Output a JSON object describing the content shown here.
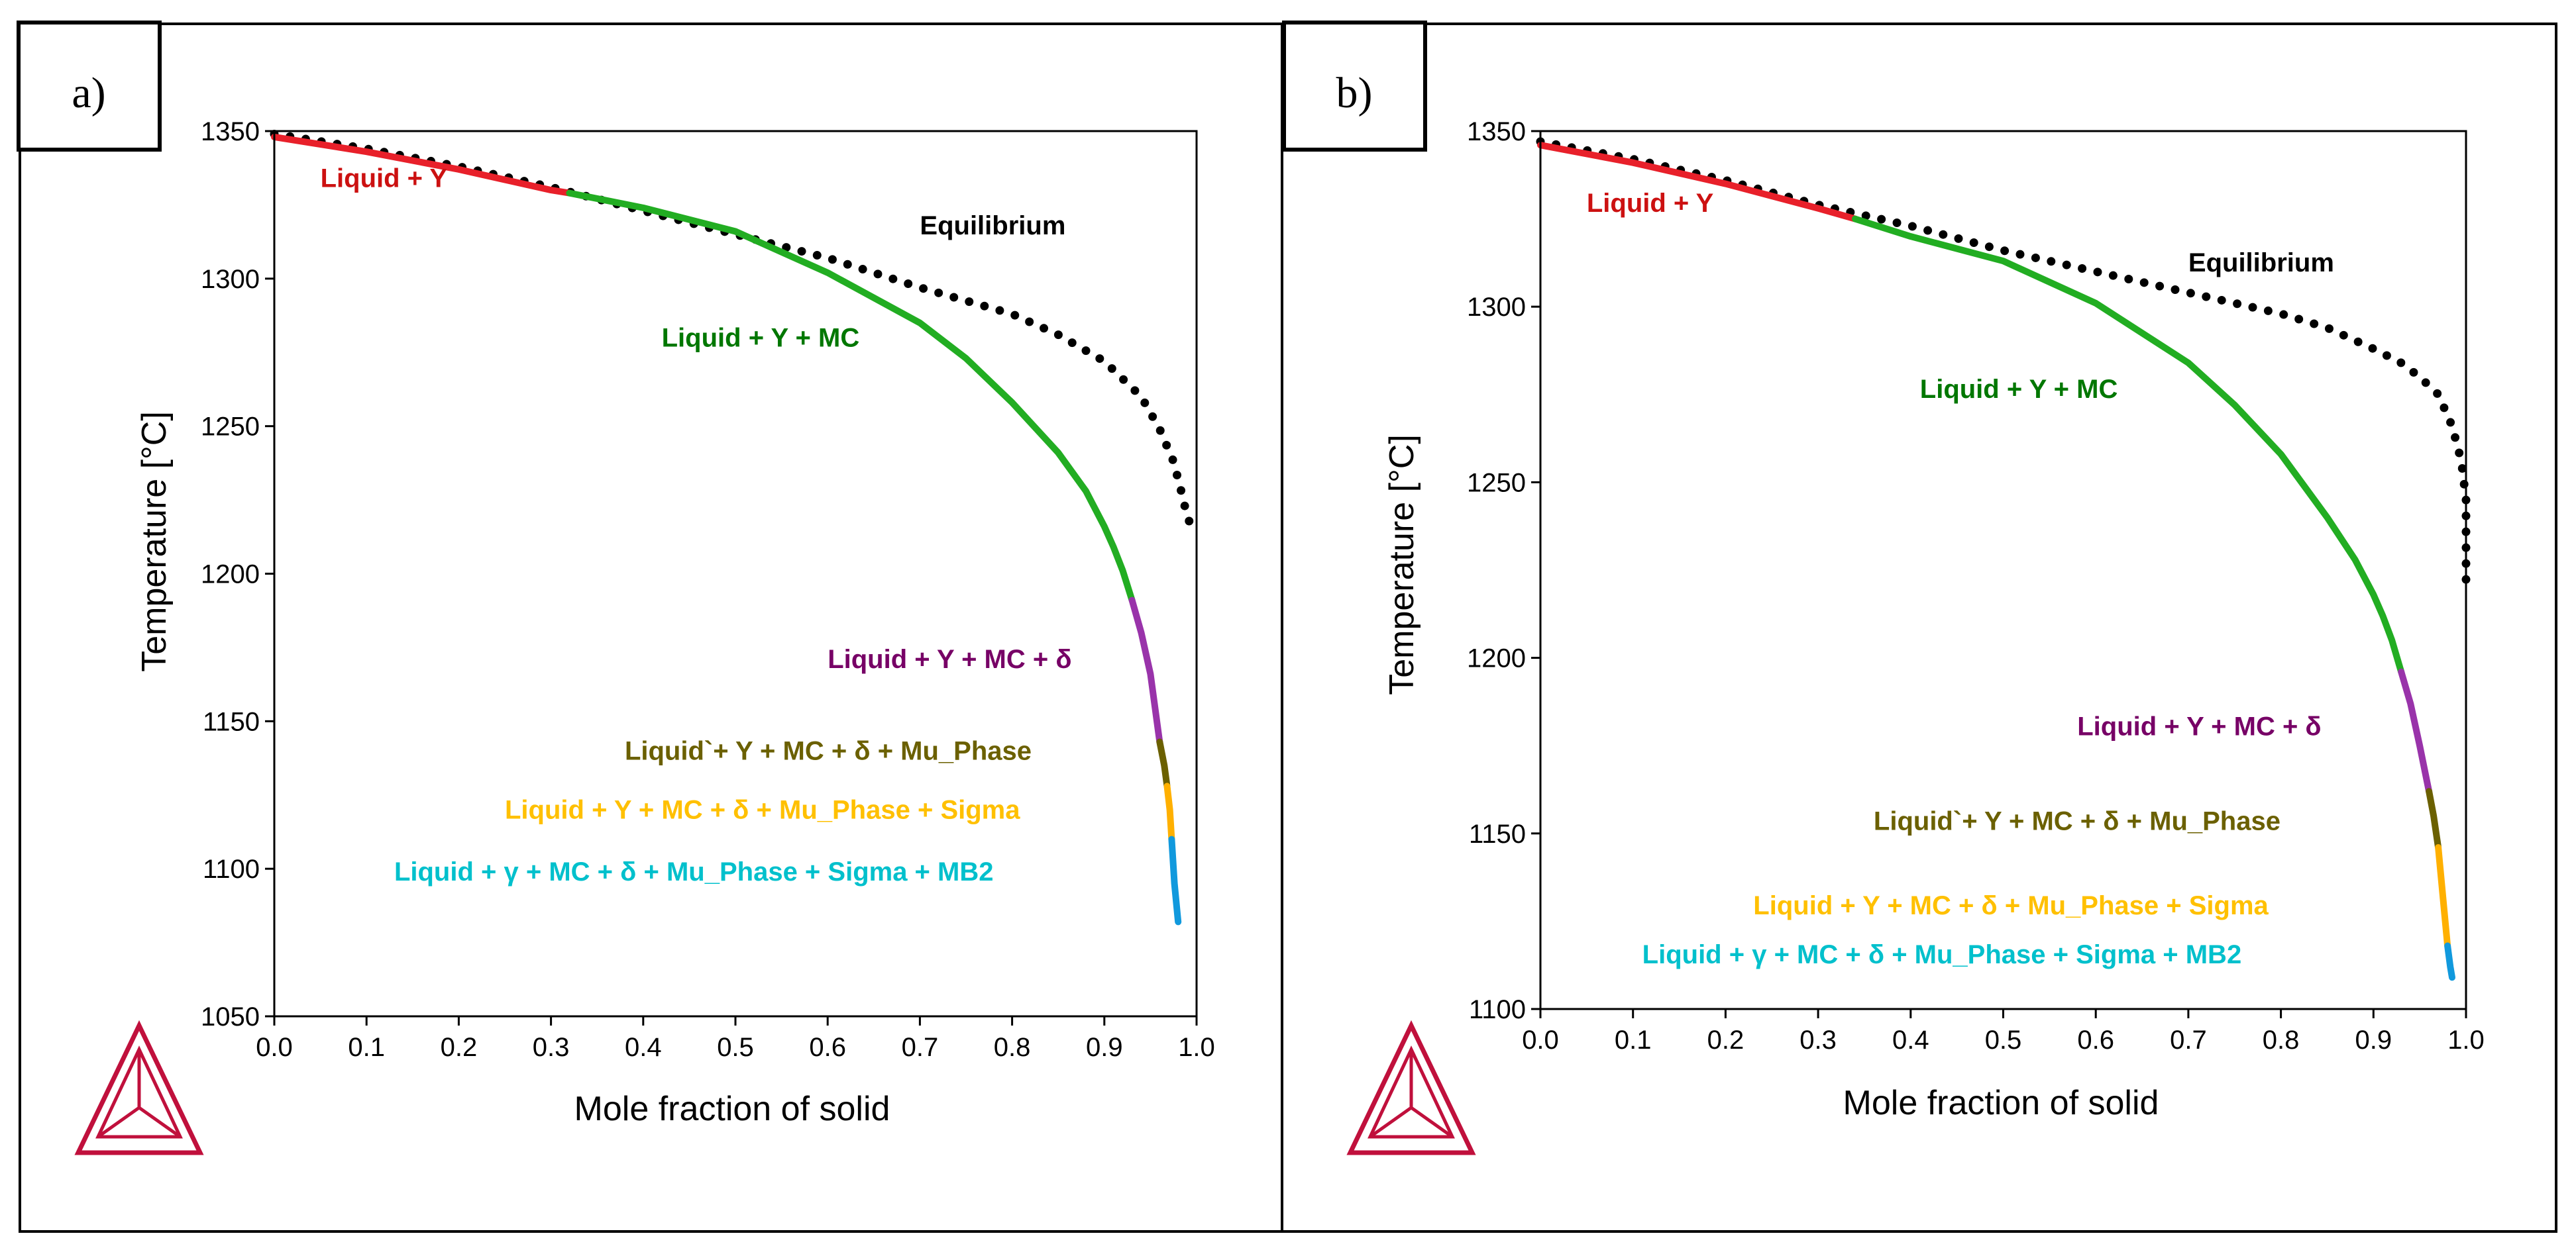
{
  "colors": {
    "liquid_y": "#e8202a",
    "liquid_y_mc": "#22ad22",
    "delta": "#9933aa",
    "mu_phase": "#6b6000",
    "sigma": "#ffb000",
    "mb2": "#1199dd",
    "equilibrium": "#000000",
    "label_red": "#cc1111",
    "label_green": "#007700",
    "label_purple": "#770066",
    "label_olive": "#6b6000",
    "label_orange": "#ffc000",
    "label_cyan": "#00c0cc",
    "logo": "#c0103c"
  },
  "chart_data": [
    {
      "type": "line",
      "panel_label": "a)",
      "xlabel": "Mole fraction of solid",
      "ylabel": "Temperature [°C]",
      "xlim": [
        0.0,
        1.0
      ],
      "ylim": [
        1050,
        1350
      ],
      "xticks": [
        0.0,
        0.1,
        0.2,
        0.3,
        0.4,
        0.5,
        0.6,
        0.7,
        0.8,
        0.9,
        1.0
      ],
      "xtick_labels": [
        "0.0",
        "0.1",
        "0.2",
        "0.3",
        "0.4",
        "0.5",
        "0.6",
        "0.7",
        "0.8",
        "0.9",
        "1.0"
      ],
      "yticks": [
        1050,
        1100,
        1150,
        1200,
        1250,
        1300,
        1350
      ],
      "ytick_labels": [
        "1050",
        "1100",
        "1150",
        "1200",
        "1250",
        "1300",
        "1350"
      ],
      "grid": false,
      "series": [
        {
          "name": "Equilibrium",
          "style": "dotted",
          "color_key": "equilibrium",
          "x": [
            0.0,
            0.1,
            0.2,
            0.3,
            0.4,
            0.5,
            0.6,
            0.7,
            0.8,
            0.85,
            0.9,
            0.94,
            0.96,
            0.975,
            0.985,
            0.99,
            0.995,
            1.0
          ],
          "y": [
            1349,
            1344,
            1338,
            1331,
            1323,
            1315,
            1307,
            1297,
            1288,
            1281,
            1272,
            1260,
            1249,
            1238,
            1226,
            1219,
            1216,
            1214
          ]
        },
        {
          "name": "Liquid +  Y",
          "style": "solid",
          "color_key": "liquid_y",
          "x": [
            0.0,
            0.1,
            0.2,
            0.3,
            0.32
          ],
          "y": [
            1348,
            1343,
            1337,
            1330,
            1329
          ]
        },
        {
          "name": "Liquid + Y + MC",
          "style": "solid",
          "color_key": "liquid_y_mc",
          "x": [
            0.32,
            0.4,
            0.5,
            0.6,
            0.7,
            0.75,
            0.8,
            0.85,
            0.88,
            0.9,
            0.91,
            0.92,
            0.93
          ],
          "y": [
            1329,
            1324,
            1316,
            1302,
            1285,
            1273,
            1258,
            1241,
            1228,
            1216,
            1209,
            1201,
            1191
          ]
        },
        {
          "name": "Liquid + Y + MC + δ",
          "style": "solid",
          "color_key": "delta",
          "x": [
            0.93,
            0.94,
            0.95,
            0.96
          ],
          "y": [
            1191,
            1180,
            1166,
            1143
          ]
        },
        {
          "name": "Liquid`+ Y + MC + δ + Mu_Phase",
          "style": "solid",
          "color_key": "mu_phase",
          "x": [
            0.96,
            0.965,
            0.968
          ],
          "y": [
            1143,
            1135,
            1128
          ]
        },
        {
          "name": "Liquid + Y + MC + δ + Mu_Phase + Sigma",
          "style": "solid",
          "color_key": "sigma",
          "x": [
            0.968,
            0.971,
            0.973
          ],
          "y": [
            1128,
            1120,
            1110
          ]
        },
        {
          "name": "Liquid + γ + MC + δ + Mu_Phase + Sigma + MB2",
          "style": "solid",
          "color_key": "mb2",
          "x": [
            0.973,
            0.976,
            0.98
          ],
          "y": [
            1110,
            1095,
            1082
          ]
        }
      ],
      "annotations": [
        {
          "text": "Liquid +  Y",
          "x": 0.05,
          "y": 1331,
          "color_key": "label_red"
        },
        {
          "text": "Equilibrium",
          "x": 0.7,
          "y": 1315,
          "color_key": "equilibrium"
        },
        {
          "text": "Liquid + Y + MC",
          "x": 0.42,
          "y": 1277,
          "color_key": "label_green"
        },
        {
          "text": "Liquid + Y + MC + δ",
          "x": 0.6,
          "y": 1168,
          "color_key": "label_purple"
        },
        {
          "text": "Liquid`+ Y + MC + δ + Mu_Phase",
          "x": 0.38,
          "y": 1137,
          "color_key": "label_olive"
        },
        {
          "text": "Liquid + Y + MC + δ + Mu_Phase + Sigma",
          "x": 0.25,
          "y": 1117,
          "color_key": "label_orange"
        },
        {
          "text": "Liquid + γ + MC + δ + Mu_Phase + Sigma + MB2",
          "x": 0.13,
          "y": 1096,
          "color_key": "label_cyan"
        }
      ]
    },
    {
      "type": "line",
      "panel_label": "b)",
      "xlabel": "Mole fraction of solid",
      "ylabel": "Temperature [°C]",
      "xlim": [
        0.0,
        1.0
      ],
      "ylim": [
        1100,
        1350
      ],
      "xticks": [
        0.0,
        0.1,
        0.2,
        0.3,
        0.4,
        0.5,
        0.6,
        0.7,
        0.8,
        0.9,
        1.0
      ],
      "xtick_labels": [
        "0.0",
        "0.1",
        "0.2",
        "0.3",
        "0.4",
        "0.5",
        "0.6",
        "0.7",
        "0.8",
        "0.9",
        "1.0"
      ],
      "yticks": [
        1100,
        1150,
        1200,
        1250,
        1300,
        1350
      ],
      "ytick_labels": [
        "1100",
        "1150",
        "1200",
        "1250",
        "1300",
        "1350"
      ],
      "grid": false,
      "series": [
        {
          "name": "Equilibrium",
          "style": "dotted",
          "color_key": "equilibrium",
          "x": [
            0.0,
            0.1,
            0.2,
            0.3,
            0.4,
            0.5,
            0.6,
            0.7,
            0.8,
            0.85,
            0.9,
            0.93,
            0.95,
            0.97,
            0.985,
            0.995,
            1.0,
            1.0
          ],
          "y": [
            1347,
            1342,
            1336,
            1329,
            1323,
            1316,
            1310,
            1304,
            1298,
            1294,
            1288,
            1284,
            1280,
            1275,
            1266,
            1256,
            1245,
            1222
          ]
        },
        {
          "name": "Liquid +  Y",
          "style": "solid",
          "color_key": "liquid_y",
          "x": [
            0.0,
            0.1,
            0.2,
            0.3,
            0.34
          ],
          "y": [
            1346,
            1341,
            1335,
            1328,
            1325
          ]
        },
        {
          "name": "Liquid + Y + MC",
          "style": "solid",
          "color_key": "liquid_y_mc",
          "x": [
            0.34,
            0.4,
            0.5,
            0.6,
            0.7,
            0.75,
            0.8,
            0.85,
            0.88,
            0.9,
            0.91,
            0.92,
            0.93
          ],
          "y": [
            1325,
            1320,
            1313,
            1301,
            1284,
            1272,
            1258,
            1240,
            1228,
            1218,
            1212,
            1205,
            1196
          ]
        },
        {
          "name": "Liquid + Y + MC + δ",
          "style": "solid",
          "color_key": "delta",
          "x": [
            0.93,
            0.94,
            0.95,
            0.96
          ],
          "y": [
            1196,
            1187,
            1175,
            1162
          ]
        },
        {
          "name": "Liquid`+ Y + MC + δ + Mu_Phase",
          "style": "solid",
          "color_key": "mu_phase",
          "x": [
            0.96,
            0.965,
            0.97
          ],
          "y": [
            1162,
            1155,
            1146
          ]
        },
        {
          "name": "Liquid + Y + MC + δ + Mu_Phase + Sigma",
          "style": "solid",
          "color_key": "sigma",
          "x": [
            0.97,
            0.975,
            0.98
          ],
          "y": [
            1146,
            1132,
            1118
          ]
        },
        {
          "name": "Liquid + γ + MC + δ + Mu_Phase + Sigma + MB2",
          "style": "solid",
          "color_key": "mb2",
          "x": [
            0.98,
            0.983,
            0.985
          ],
          "y": [
            1118,
            1112,
            1109
          ]
        }
      ],
      "annotations": [
        {
          "text": "Liquid +  Y",
          "x": 0.05,
          "y": 1327,
          "color_key": "label_red"
        },
        {
          "text": "Equilibrium",
          "x": 0.7,
          "y": 1310,
          "color_key": "equilibrium"
        },
        {
          "text": "Liquid + Y + MC",
          "x": 0.41,
          "y": 1274,
          "color_key": "label_green"
        },
        {
          "text": "Liquid + Y + MC + δ",
          "x": 0.58,
          "y": 1178,
          "color_key": "label_purple"
        },
        {
          "text": "Liquid`+ Y + MC + δ + Mu_Phase",
          "x": 0.36,
          "y": 1151,
          "color_key": "label_olive"
        },
        {
          "text": "Liquid + Y + MC + δ + Mu_Phase + Sigma",
          "x": 0.23,
          "y": 1127,
          "color_key": "label_orange"
        },
        {
          "text": "Liquid + γ + MC + δ + Mu_Phase + Sigma + MB2",
          "x": 0.11,
          "y": 1113,
          "color_key": "label_cyan"
        }
      ]
    }
  ]
}
